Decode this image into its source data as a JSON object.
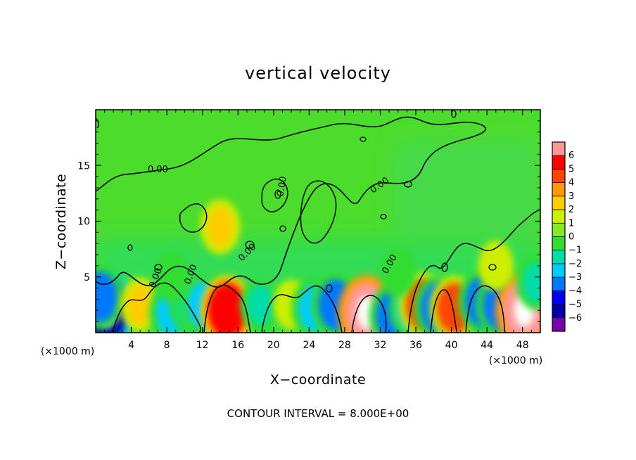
{
  "chart_data": {
    "type": "heatmap",
    "title": "vertical velocity",
    "xlabel": "X−coordinate",
    "ylabel": "Z−coordinate",
    "x_unit_label": "(×1000 m)",
    "xlim": [
      0,
      50
    ],
    "ylim": [
      0,
      20
    ],
    "x_ticks": [
      "4",
      "8",
      "12",
      "16",
      "20",
      "24",
      "28",
      "32",
      "36",
      "40",
      "44",
      "48"
    ],
    "y_ticks": [
      "5",
      "10",
      "15"
    ],
    "contour_label": "0.00",
    "footer": "CONTOUR INTERVAL = 8.000E+00",
    "colorbar": {
      "levels": [
        "6",
        "5",
        "4",
        "3",
        "2",
        "1",
        "0",
        "−1",
        "−2",
        "−3",
        "−4",
        "−5",
        "−6"
      ],
      "colors": [
        "#ff9999",
        "#ff0000",
        "#ff4400",
        "#ff9900",
        "#ffcc00",
        "#ccee00",
        "#88e822",
        "#33dd33",
        "#00ddaa",
        "#00ccff",
        "#0077ff",
        "#0000ee",
        "#0000aa",
        "#7700aa"
      ]
    },
    "cells": [
      {
        "x": 1.2,
        "z": 2.0,
        "w": -6
      },
      {
        "x": 0.5,
        "z": 3.2,
        "w": -4
      },
      {
        "x": 5.0,
        "z": 2.5,
        "w": 2
      },
      {
        "x": 8.5,
        "z": 1.8,
        "w": -3
      },
      {
        "x": 10.5,
        "z": 2.5,
        "w": -2
      },
      {
        "x": 12.0,
        "z": 2.5,
        "w": -3
      },
      {
        "x": 14.8,
        "z": 2.0,
        "w": 5
      },
      {
        "x": 18.5,
        "z": 2.5,
        "w": -2
      },
      {
        "x": 22.0,
        "z": 2.5,
        "w": 1
      },
      {
        "x": 24.5,
        "z": 2.2,
        "w": -3
      },
      {
        "x": 27.0,
        "z": 2.5,
        "w": -4
      },
      {
        "x": 30.5,
        "z": 1.8,
        "w": 6
      },
      {
        "x": 33.5,
        "z": 1.5,
        "w": -4
      },
      {
        "x": 35.5,
        "z": 2.2,
        "w": -3
      },
      {
        "x": 36.8,
        "z": 2.5,
        "w": 4
      },
      {
        "x": 38.5,
        "z": 2.2,
        "w": -4
      },
      {
        "x": 40.3,
        "z": 2.2,
        "w": 4
      },
      {
        "x": 43.5,
        "z": 2.8,
        "w": -4
      },
      {
        "x": 45.5,
        "z": 2.5,
        "w": -4
      },
      {
        "x": 48.2,
        "z": 2.0,
        "w": 6
      },
      {
        "x": 49.5,
        "z": 4.5,
        "w": -2
      },
      {
        "x": 34.0,
        "z": 5.5,
        "w": -1
      },
      {
        "x": 8.5,
        "z": 5.0,
        "w": -1
      },
      {
        "x": 45.0,
        "z": 6.0,
        "w": 1
      },
      {
        "x": 14.0,
        "z": 9.5,
        "w": 2
      }
    ]
  }
}
